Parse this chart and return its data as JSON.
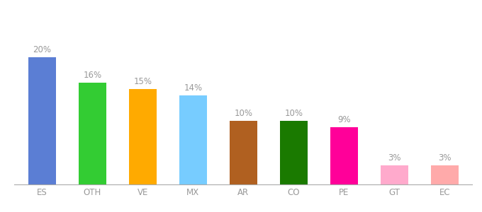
{
  "categories": [
    "ES",
    "OTH",
    "VE",
    "MX",
    "AR",
    "CO",
    "PE",
    "GT",
    "EC"
  ],
  "values": [
    20,
    16,
    15,
    14,
    10,
    10,
    9,
    3,
    3
  ],
  "bar_colors": [
    "#5b7ed4",
    "#33cc33",
    "#ffaa00",
    "#77ccff",
    "#b06020",
    "#1a7a00",
    "#ff0099",
    "#ffaacc",
    "#ffaaaa"
  ],
  "label_color": "#999999",
  "label_fontsize": 8.5,
  "tick_fontsize": 8.5,
  "ylim": [
    0,
    25
  ],
  "background_color": "#ffffff",
  "bar_width": 0.55
}
